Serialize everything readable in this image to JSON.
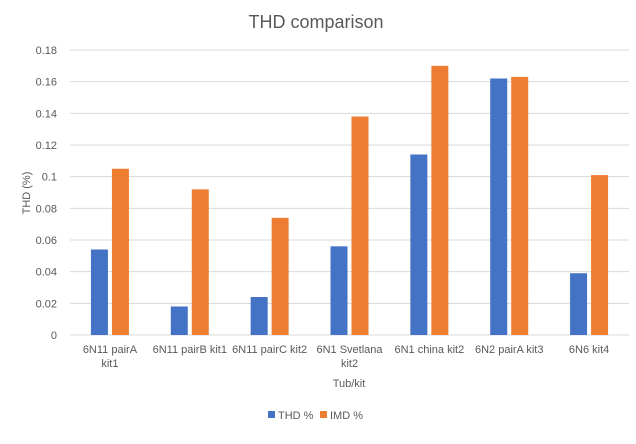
{
  "chart_data": {
    "type": "bar",
    "title": "THD comparison",
    "xlabel": "Tub/kit",
    "ylabel": "THD (%)",
    "ylim": [
      0,
      0.18
    ],
    "yticks": [
      "0",
      "0.02",
      "0.04",
      "0.06",
      "0.08",
      "0.1",
      "0.12",
      "0.14",
      "0.16",
      "0.18"
    ],
    "categories": [
      [
        "6N11  pairA",
        "kit1"
      ],
      [
        "6N11 pairB kit1"
      ],
      [
        "6N11 pairC kit2"
      ],
      [
        "6N1 Svetlana",
        "kit2"
      ],
      [
        "6N1 china kit2"
      ],
      [
        "6N2 pairA kit3"
      ],
      [
        "6N6 kit4"
      ]
    ],
    "series": [
      {
        "name": "THD  %",
        "color": "#4472c4",
        "values": [
          0.054,
          0.018,
          0.024,
          0.056,
          0.114,
          0.162,
          0.039
        ]
      },
      {
        "name": "IMD  %",
        "color": "#ed7d31",
        "values": [
          0.105,
          0.092,
          0.074,
          0.138,
          0.17,
          0.163,
          0.101
        ]
      }
    ],
    "grid": true,
    "legend_position": "bottom"
  }
}
